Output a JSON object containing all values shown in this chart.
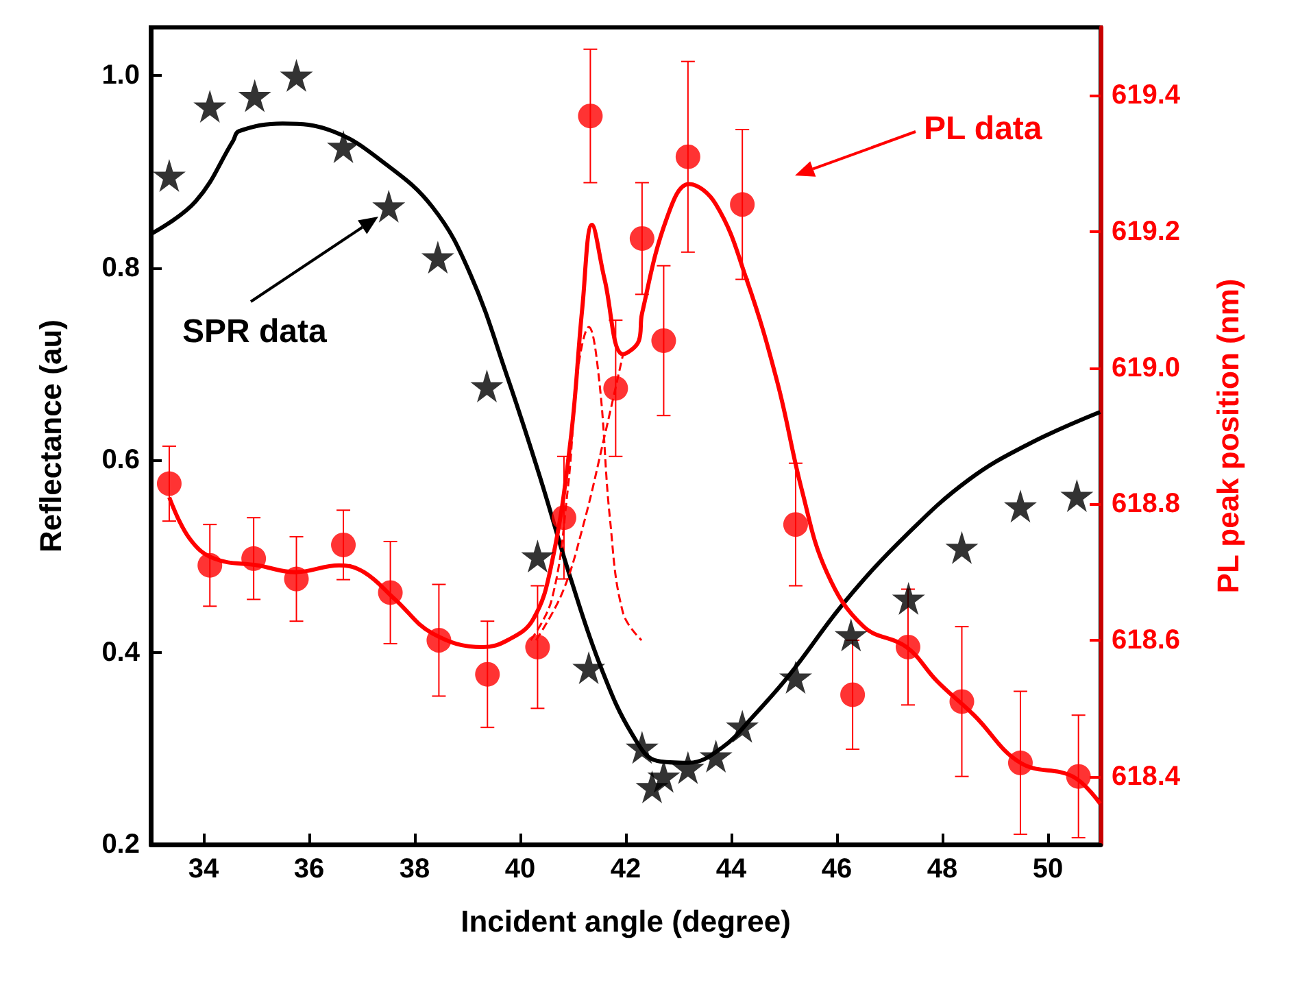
{
  "chart_data": {
    "type": "scatter",
    "xlabel": "Incident angle (degree)",
    "ylabel": "Reflectance (au)",
    "y2label": "PL peak position (nm)",
    "xlim": [
      33,
      51
    ],
    "xticks": [
      34,
      36,
      38,
      40,
      42,
      44,
      46,
      48,
      50
    ],
    "ylim": [
      0.2,
      1.05
    ],
    "yticks": [
      0.2,
      0.4,
      0.6,
      0.8,
      {
        "value": 1,
        "label": "1.0"
      }
    ],
    "y2lim": [
      618.3,
      619.5
    ],
    "y2ticks": [
      618.4,
      618.6,
      618.8,
      {
        "value": 619,
        "label": "619.0"
      },
      619.2,
      619.4
    ],
    "grid": false,
    "annotations": [
      "SPR data",
      "PL data"
    ],
    "series": [
      {
        "marker": "star",
        "color": "#000000",
        "x": [
          33.35,
          34.12,
          34.97,
          35.76,
          36.65,
          37.51,
          38.44,
          39.37,
          40.33,
          41.3,
          42.31,
          42.5,
          42.72,
          43.18,
          43.71,
          44.21,
          45.22,
          46.27,
          47.36,
          48.37,
          49.48,
          50.55
        ],
        "values": [
          0.896,
          0.968,
          0.979,
          1.0,
          0.926,
          0.864,
          0.811,
          0.677,
          0.5,
          0.384,
          0.301,
          0.26,
          0.271,
          0.28,
          0.292,
          0.323,
          0.374,
          0.418,
          0.456,
          0.509,
          0.552,
          0.563
        ]
      },
      {
        "type": "line",
        "marker": "none",
        "line_style": "solid",
        "color": "#000000",
        "x": [
          33.0,
          33.85,
          34.56,
          34.67,
          35.5,
          36.45,
          37.4,
          38.34,
          39.05,
          39.76,
          40.36,
          40.95,
          41.54,
          42.13,
          42.6,
          43.18,
          43.83,
          44.41,
          45.11,
          46.16,
          47.32,
          48.49,
          49.65,
          50.99
        ],
        "values": [
          0.835,
          0.869,
          0.932,
          0.942,
          0.95,
          0.942,
          0.91,
          0.863,
          0.794,
          0.686,
          0.585,
          0.478,
          0.383,
          0.314,
          0.287,
          0.285,
          0.301,
          0.333,
          0.377,
          0.453,
          0.522,
          0.579,
          0.617,
          0.65
        ]
      },
      {
        "marker": "circle",
        "axis": "y2",
        "color": "#ff0000",
        "x": [
          33.35,
          34.12,
          34.95,
          35.76,
          36.65,
          37.54,
          38.46,
          39.38,
          40.33,
          40.83,
          41.33,
          41.81,
          42.31,
          42.72,
          43.18,
          44.21,
          45.22,
          46.3,
          47.35,
          48.37,
          49.48,
          50.58
        ],
        "values": [
          618.83,
          618.71,
          618.72,
          618.69,
          618.74,
          618.67,
          618.6,
          618.55,
          618.59,
          618.78,
          619.37,
          618.97,
          619.19,
          619.04,
          619.31,
          619.24,
          618.77,
          618.52,
          618.59,
          618.51,
          618.42,
          618.4
        ],
        "errors": [
          0.055,
          0.06,
          0.06,
          0.062,
          0.051,
          0.075,
          0.082,
          0.078,
          0.09,
          0.09,
          0.098,
          0.1,
          0.082,
          0.11,
          0.14,
          0.11,
          0.09,
          0.08,
          0.085,
          0.11,
          0.105,
          0.09
        ]
      },
      {
        "type": "line",
        "marker": "none",
        "line_style": "solid",
        "axis": "y2",
        "color": "#ff0000",
        "x": [
          33.35,
          33.73,
          34.2,
          35.03,
          35.74,
          36.57,
          37.04,
          37.63,
          38.34,
          39.29,
          39.76,
          40.24,
          40.59,
          40.95,
          41.18,
          41.36,
          41.6,
          41.95,
          42.25,
          42.31,
          42.78,
          43.2,
          43.71,
          44.29,
          44.87,
          45.34,
          45.81,
          46.51,
          47.32,
          47.9,
          48.6,
          49.48,
          50.47,
          50.99
        ],
        "values": [
          618.81,
          618.75,
          618.72,
          618.71,
          618.7,
          618.71,
          618.7,
          618.66,
          618.61,
          618.59,
          618.6,
          618.63,
          618.71,
          618.89,
          619.09,
          619.21,
          619.13,
          619.02,
          619.04,
          619.08,
          619.22,
          619.27,
          619.24,
          619.13,
          618.98,
          618.82,
          618.7,
          618.62,
          618.59,
          618.54,
          618.49,
          618.42,
          618.4,
          618.36
        ]
      },
      {
        "type": "line",
        "marker": "none",
        "line_style": "dashed",
        "axis": "y2",
        "color": "#ff0000",
        "x": [
          40.2,
          40.6,
          40.9,
          41.1,
          41.3,
          41.5,
          41.7,
          41.95,
          42.3
        ],
        "values": [
          618.6,
          618.66,
          618.82,
          619.0,
          619.06,
          618.98,
          618.78,
          618.64,
          618.6
        ]
      },
      {
        "type": "line",
        "marker": "none",
        "line_style": "dashed",
        "axis": "y2",
        "color": "#ff0000",
        "x": [
          40.3,
          40.8,
          41.2,
          41.6,
          41.95
        ],
        "values": [
          618.6,
          618.67,
          618.77,
          618.9,
          619.02
        ]
      }
    ]
  }
}
